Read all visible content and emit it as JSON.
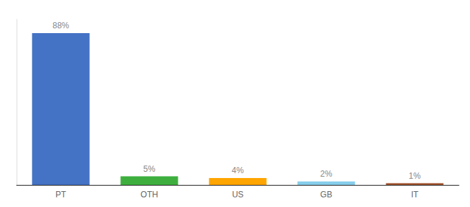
{
  "chart_data": {
    "type": "bar",
    "categories": [
      "PT",
      "OTH",
      "US",
      "GB",
      "IT"
    ],
    "values": [
      88,
      5,
      4,
      2,
      1
    ],
    "value_labels": [
      "88%",
      "5%",
      "4%",
      "2%",
      "1%"
    ],
    "data_labels": true,
    "colors": [
      "#4472C4",
      "#3EAF3E",
      "#FFA500",
      "#87CEEB",
      "#A0522D"
    ],
    "ylim": [
      0,
      96
    ],
    "grid": false,
    "tick_labels": "x"
  }
}
